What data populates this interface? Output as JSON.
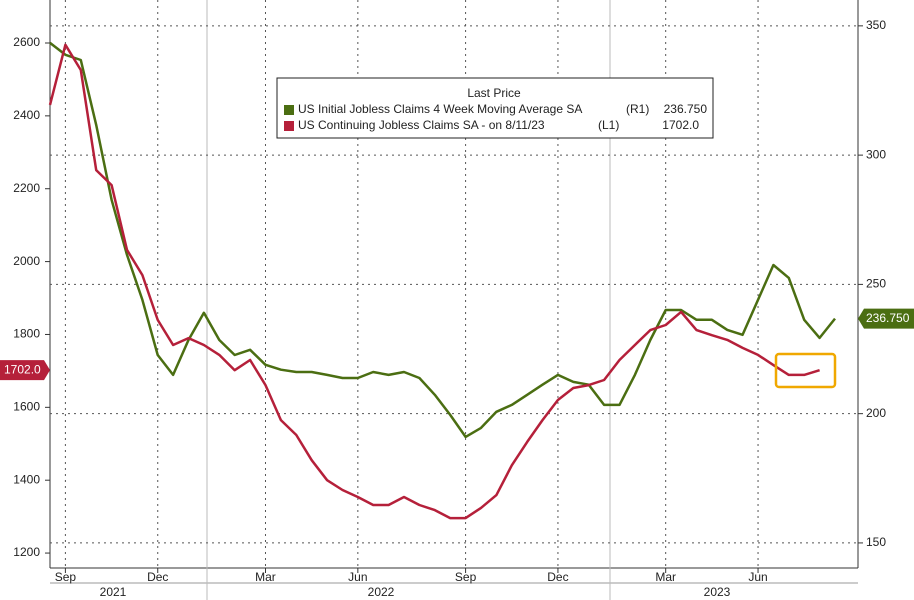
{
  "chart_data": {
    "type": "line",
    "legend_title": "Last Price",
    "categories": [
      null,
      "Sep",
      null,
      null,
      null,
      null,
      null,
      "Dec",
      null,
      null,
      null,
      null,
      null,
      null,
      "Mar",
      null,
      null,
      null,
      null,
      null,
      "Jun",
      null,
      null,
      null,
      null,
      null,
      null,
      "Sep",
      null,
      null,
      null,
      null,
      null,
      "Dec",
      null,
      null,
      null,
      null,
      null,
      null,
      "Mar",
      null,
      null,
      null,
      null,
      null,
      "Jun",
      null,
      null,
      null,
      null,
      null
    ],
    "x_group_labels": [
      "2021",
      "2022",
      "2023"
    ],
    "series": [
      {
        "name": "US Initial Jobless Claims 4 Week Moving Average SA",
        "legend_tag": "(R1)",
        "axis": "y2",
        "color": "#4b6e12",
        "values": [
          343.4,
          338.8,
          336.8,
          311.7,
          282.7,
          261.4,
          244,
          222.7,
          215,
          228.5,
          239,
          228.5,
          222.7,
          224.7,
          218.9,
          217,
          216.1,
          216.1,
          215,
          213.8,
          213.8,
          216.1,
          215,
          216.1,
          213.8,
          207.3,
          199.5,
          191,
          194.5,
          200.7,
          203.4,
          207.3,
          211.2,
          215,
          212.3,
          211.2,
          203.4,
          203.4,
          215,
          228.5,
          240.1,
          240.1,
          236.3,
          236.3,
          232.4,
          230.5,
          244,
          257.5,
          252.5,
          236.3,
          229.3,
          236.75
        ],
        "value_labels": [
          null,
          null,
          null,
          null,
          null,
          null,
          null,
          null,
          null,
          null,
          null,
          null,
          null,
          null,
          null,
          null,
          null,
          null,
          null,
          null,
          null,
          null,
          null,
          null,
          null,
          null,
          null,
          null,
          null,
          null,
          null,
          null,
          null,
          null,
          null,
          null,
          null,
          null,
          null,
          null,
          null,
          null,
          null,
          null,
          null,
          null,
          null,
          null,
          null,
          null,
          null,
          "236.750"
        ]
      },
      {
        "name": "US Continuing Jobless Claims SA -  on 8/11/23",
        "legend_tag": "(L1)",
        "axis": "y",
        "color": "#b5203a",
        "values": [
          2430,
          2595,
          2526,
          2251,
          2210,
          2032,
          1963,
          1840,
          1771,
          1790,
          1771,
          1744,
          1702,
          1730,
          1661,
          1565,
          1524,
          1455,
          1400,
          1373,
          1354,
          1332,
          1332,
          1354,
          1332,
          1318,
          1296,
          1296,
          1324,
          1359,
          1441,
          1505,
          1565,
          1620,
          1653,
          1661,
          1675,
          1730,
          1771,
          1812,
          1826,
          1862,
          1812,
          1798,
          1785,
          1763,
          1744,
          1716,
          1689,
          1689,
          1702,
          null
        ],
        "value_labels": [
          null,
          null,
          null,
          null,
          null,
          null,
          null,
          null,
          null,
          null,
          null,
          null,
          null,
          null,
          null,
          null,
          null,
          null,
          null,
          null,
          null,
          null,
          null,
          null,
          null,
          null,
          null,
          null,
          null,
          null,
          null,
          null,
          null,
          null,
          null,
          null,
          null,
          null,
          null,
          null,
          null,
          null,
          null,
          null,
          null,
          null,
          null,
          null,
          null,
          null,
          "1702.0",
          null
        ]
      }
    ],
    "ylim": [
      1159,
      2718
    ],
    "yticks": [
      1200,
      1400,
      1600,
      1800,
      2000,
      2200,
      2400,
      2600
    ],
    "y2lim": [
      140.3,
      360
    ],
    "y2ticks": [
      150,
      200,
      250,
      300,
      350
    ],
    "grid": true
  }
}
